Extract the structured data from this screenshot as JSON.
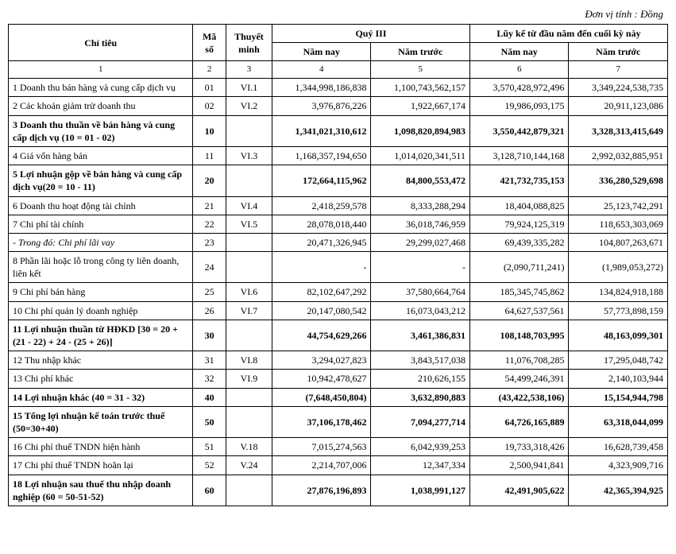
{
  "unit_label": "Đơn vị tính : Đồng",
  "headers": {
    "col_label": "Chỉ tiêu",
    "col_code": "Mã số",
    "col_note": "Thuyết minh",
    "q3_group": "Quý III",
    "cum_group": "Lũy kế từ đầu năm đến cuối kỳ này",
    "this_year": "Năm nay",
    "prev_year": "Năm trước",
    "num_cols": [
      "1",
      "2",
      "3",
      "4",
      "5",
      "6",
      "7"
    ]
  },
  "rows": [
    {
      "bold": false,
      "label": "1  Doanh thu bán hàng và cung cấp dịch vụ",
      "code": "01",
      "note": "VI.1",
      "q3_now": "1,344,998,186,838",
      "q3_prev": "1,100,743,562,157",
      "cum_now": "3,570,428,972,496",
      "cum_prev": "3,349,224,538,735"
    },
    {
      "bold": false,
      "label": "2  Các khoản giảm trừ doanh thu",
      "code": "02",
      "note": "VI.2",
      "q3_now": "3,976,876,226",
      "q3_prev": "1,922,667,174",
      "cum_now": "19,986,093,175",
      "cum_prev": "20,911,123,086"
    },
    {
      "bold": true,
      "label": "3  Doanh thu thuần về bán hàng và cung cấp dịch vụ (10 = 01 - 02)",
      "code": "10",
      "note": "",
      "q3_now": "1,341,021,310,612",
      "q3_prev": "1,098,820,894,983",
      "cum_now": "3,550,442,879,321",
      "cum_prev": "3,328,313,415,649"
    },
    {
      "bold": false,
      "label": "4  Giá vốn hàng bán",
      "code": "11",
      "note": "VI.3",
      "q3_now": "1,168,357,194,650",
      "q3_prev": "1,014,020,341,511",
      "cum_now": "3,128,710,144,168",
      "cum_prev": "2,992,032,885,951"
    },
    {
      "bold": true,
      "label": "5  Lợi nhuận gộp về bán hàng và cung cấp dịch vụ(20 = 10 - 11)",
      "code": "20",
      "note": "",
      "q3_now": "172,664,115,962",
      "q3_prev": "84,800,553,472",
      "cum_now": "421,732,735,153",
      "cum_prev": "336,280,529,698"
    },
    {
      "bold": false,
      "label": "6  Doanh thu hoạt động tài chính",
      "code": "21",
      "note": "VI.4",
      "q3_now": "2,418,259,578",
      "q3_prev": "8,333,288,294",
      "cum_now": "18,404,088,825",
      "cum_prev": "25,123,742,291"
    },
    {
      "bold": false,
      "label": "7  Chi phí tài chính",
      "code": "22",
      "note": "VI.5",
      "q3_now": "28,078,018,440",
      "q3_prev": "36,018,746,959",
      "cum_now": "79,924,125,319",
      "cum_prev": "118,653,303,069"
    },
    {
      "bold": false,
      "italic": true,
      "label": "  -  Trong đó:  Chi phí lãi vay",
      "code": "23",
      "note": "",
      "q3_now": "20,471,326,945",
      "q3_prev": "29,299,027,468",
      "cum_now": "69,439,335,282",
      "cum_prev": "104,807,263,671"
    },
    {
      "bold": false,
      "label": "8  Phần lãi hoặc lỗ trong công ty liên doanh, liên kết",
      "code": "24",
      "note": "",
      "q3_now": "-",
      "q3_prev": "-",
      "cum_now": "(2,090,711,241)",
      "cum_prev": "(1,989,053,272)"
    },
    {
      "bold": false,
      "label": "9  Chi phí bán hàng",
      "code": "25",
      "note": "VI.6",
      "q3_now": "82,102,647,292",
      "q3_prev": "37,580,664,764",
      "cum_now": "185,345,745,862",
      "cum_prev": "134,824,918,188"
    },
    {
      "bold": false,
      "label": "10 Chi phí quản lý doanh nghiệp",
      "code": "26",
      "note": "VI.7",
      "q3_now": "20,147,080,542",
      "q3_prev": "16,073,043,212",
      "cum_now": "64,627,537,561",
      "cum_prev": "57,773,898,159"
    },
    {
      "bold": true,
      "label": "11 Lợi nhuận thuần từ HĐKD [30 = 20 + (21 - 22) + 24 - (25 + 26)]",
      "code": "30",
      "note": "",
      "q3_now": "44,754,629,266",
      "q3_prev": "3,461,386,831",
      "cum_now": "108,148,703,995",
      "cum_prev": "48,163,099,301"
    },
    {
      "bold": false,
      "label": "12 Thu nhập khác",
      "code": "31",
      "note": "VI.8",
      "q3_now": "3,294,027,823",
      "q3_prev": "3,843,517,038",
      "cum_now": "11,076,708,285",
      "cum_prev": "17,295,048,742"
    },
    {
      "bold": false,
      "label": "13 Chi phí khác",
      "code": "32",
      "note": "VI.9",
      "q3_now": "10,942,478,627",
      "q3_prev": "210,626,155",
      "cum_now": "54,499,246,391",
      "cum_prev": "2,140,103,944"
    },
    {
      "bold": true,
      "label": "14 Lợi nhuận khác (40 = 31 - 32)",
      "code": "40",
      "note": "",
      "q3_now": "(7,648,450,804)",
      "q3_prev": "3,632,890,883",
      "cum_now": "(43,422,538,106)",
      "cum_prev": "15,154,944,798"
    },
    {
      "bold": true,
      "label": "15 Tổng lợi nhuận kế toán trước thuế (50=30+40)",
      "code": "50",
      "note": "",
      "q3_now": "37,106,178,462",
      "q3_prev": "7,094,277,714",
      "cum_now": "64,726,165,889",
      "cum_prev": "63,318,044,099"
    },
    {
      "bold": false,
      "label": "16 Chi phí thuế TNDN hiện hành",
      "code": "51",
      "note": "V.18",
      "q3_now": "7,015,274,563",
      "q3_prev": "6,042,939,253",
      "cum_now": "19,733,318,426",
      "cum_prev": "16,628,739,458"
    },
    {
      "bold": false,
      "label": "17 Chi phí thuế TNDN hoãn lại",
      "code": "52",
      "note": "V.24",
      "q3_now": "2,214,707,006",
      "q3_prev": "12,347,334",
      "cum_now": "2,500,941,841",
      "cum_prev": "4,323,909,716"
    },
    {
      "bold": true,
      "label": "18 Lợi nhuận sau thuế thu nhập doanh nghiệp (60 = 50-51-52)",
      "code": "60",
      "note": "",
      "q3_now": "27,876,196,893",
      "q3_prev": "1,038,991,127",
      "cum_now": "42,491,905,622",
      "cum_prev": "42,365,394,925"
    }
  ]
}
